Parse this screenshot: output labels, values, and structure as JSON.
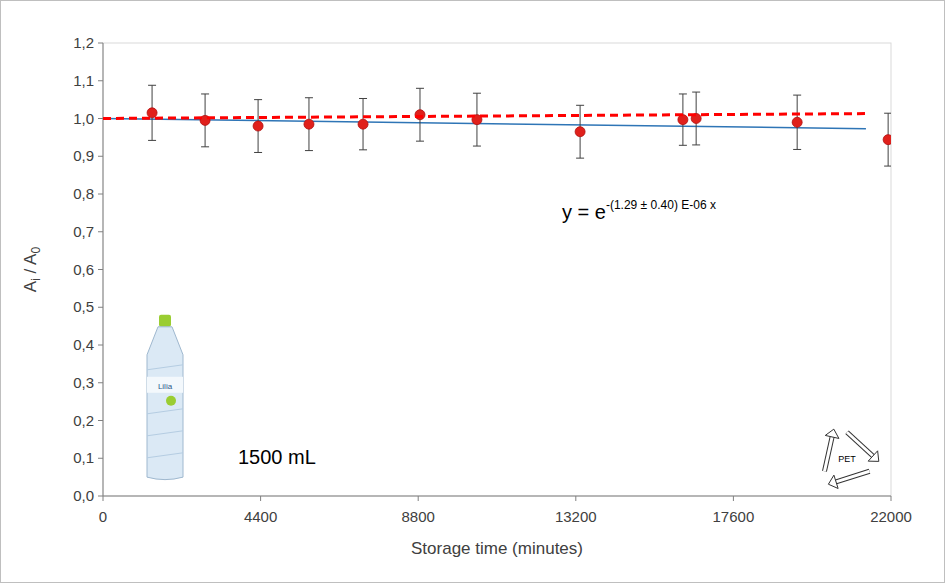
{
  "chart_data": {
    "type": "scatter",
    "x_label": "Storage time (minutes)",
    "y_label": [
      {
        "text": "A"
      },
      {
        "text": "i",
        "sub": true
      },
      {
        "text": " / A"
      },
      {
        "text": "0",
        "sub": true
      }
    ],
    "xlim": [
      0,
      22000
    ],
    "xticks": [
      0,
      4400,
      8800,
      13200,
      17600,
      22000
    ],
    "ylim": [
      0,
      1.2
    ],
    "yticks": [
      {
        "value": 0,
        "label": "0,0"
      },
      {
        "value": 0.1,
        "label": "0,1"
      },
      {
        "value": 0.2,
        "label": "0,2"
      },
      {
        "value": 0.3,
        "label": "0,3"
      },
      {
        "value": 0.4,
        "label": "0,4"
      },
      {
        "value": 0.5,
        "label": "0,5"
      },
      {
        "value": 0.6,
        "label": "0,6"
      },
      {
        "value": 0.7,
        "label": "0,7"
      },
      {
        "value": 0.8,
        "label": "0,8"
      },
      {
        "value": 0.9,
        "label": "0,9"
      },
      {
        "value": 1.0,
        "label": "1,0"
      },
      {
        "value": 1.1,
        "label": "1,1"
      },
      {
        "value": 1.2,
        "label": "1,2"
      }
    ],
    "grid": false,
    "series": [
      {
        "type": "line",
        "color": "#2e75b6",
        "line_style": "solid",
        "x": [
          0,
          21300
        ],
        "values": [
          1.0,
          0.973
        ]
      },
      {
        "type": "scatter",
        "color": "#e0201b",
        "marker": "circle",
        "x": [
          1370,
          2850,
          4330,
          5750,
          7260,
          8850,
          10440,
          13320,
          16190,
          16560,
          19380,
          21920
        ],
        "values": [
          1.015,
          0.995,
          0.98,
          0.985,
          0.985,
          1.01,
          0.997,
          0.965,
          0.997,
          1.0,
          0.99,
          0.944
        ],
        "errors": [
          0.073,
          0.07,
          0.07,
          0.07,
          0.068,
          0.07,
          0.07,
          0.07,
          0.068,
          0.07,
          0.072,
          0.07
        ]
      },
      {
        "type": "line",
        "color": "#ff0000",
        "line_style": "dashed",
        "x": [
          0,
          21300
        ],
        "values": [
          1.0,
          1.013
        ]
      }
    ],
    "annotations": {
      "equation_base": "y = e",
      "equation_exponent": "-(1.29 ± 0.40) E-06 x",
      "volume": "1500 mL",
      "brand": "Lilia",
      "recycle_code": "PET"
    }
  }
}
